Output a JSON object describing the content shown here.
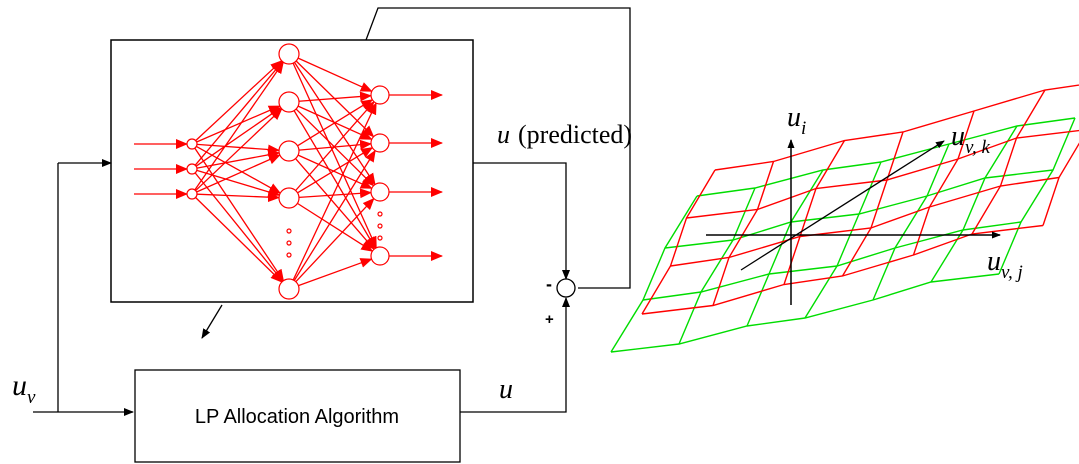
{
  "labels": {
    "u_v": "u",
    "u_v_sub": "v",
    "u_predicted_sym": "u",
    "u_predicted_text": "(predicted)",
    "u_output": "u",
    "lp_algorithm": "LP Allocation Algorithm",
    "minus_sign": "-",
    "plus_sign": "+",
    "ellipsis_dots": "o"
  },
  "plot_labels": {
    "u_i": "u",
    "u_i_sub": "i",
    "u_vk": "u",
    "u_vk_sub": "v, k",
    "u_vj": "u",
    "u_vj_sub": "v, j"
  },
  "colors": {
    "network": "#ff0000",
    "surface_a": "#ff0000",
    "surface_b": "#00dd00",
    "lines": "#000000"
  }
}
